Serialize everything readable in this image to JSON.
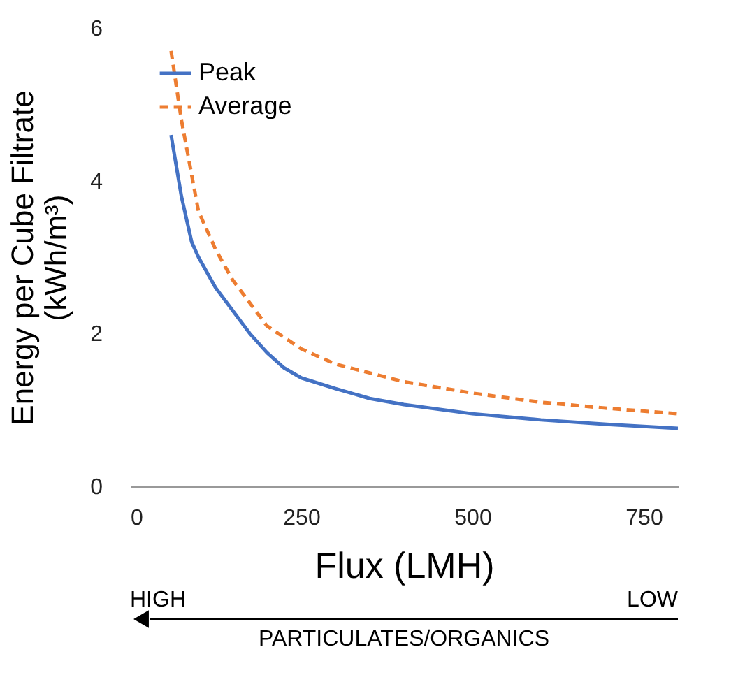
{
  "chart_data": {
    "type": "line",
    "xlabel": "Flux (LMH)",
    "ylabel": "Energy per Cube Filtrate (kWh/m³)",
    "xlim": [
      0,
      800
    ],
    "xticks": [
      0,
      250,
      500,
      750
    ],
    "ylim": [
      0,
      6
    ],
    "yticks": [
      0,
      2,
      4,
      6
    ],
    "grid": false,
    "legend": "top left",
    "series": [
      {
        "name": "Peak",
        "color": "#4472c4",
        "line_style": "solid",
        "x": [
          60,
          75,
          90,
          100,
          125,
          150,
          175,
          200,
          225,
          250,
          300,
          350,
          400,
          500,
          600,
          700,
          800
        ],
        "values": [
          4.6,
          3.8,
          3.2,
          3.0,
          2.6,
          2.3,
          2.0,
          1.75,
          1.55,
          1.42,
          1.28,
          1.15,
          1.07,
          0.95,
          0.87,
          0.81,
          0.76
        ]
      },
      {
        "name": "Average",
        "color": "#ed7d31",
        "line_style": "dashed",
        "x": [
          60,
          75,
          100,
          125,
          150,
          200,
          250,
          300,
          400,
          500,
          600,
          700,
          800
        ],
        "values": [
          5.7,
          4.8,
          3.6,
          3.1,
          2.7,
          2.1,
          1.8,
          1.6,
          1.37,
          1.22,
          1.1,
          1.02,
          0.95
        ]
      }
    ],
    "annotations": [
      "HIGH",
      "LOW",
      "PARTICULATES/ORGANICS"
    ]
  }
}
